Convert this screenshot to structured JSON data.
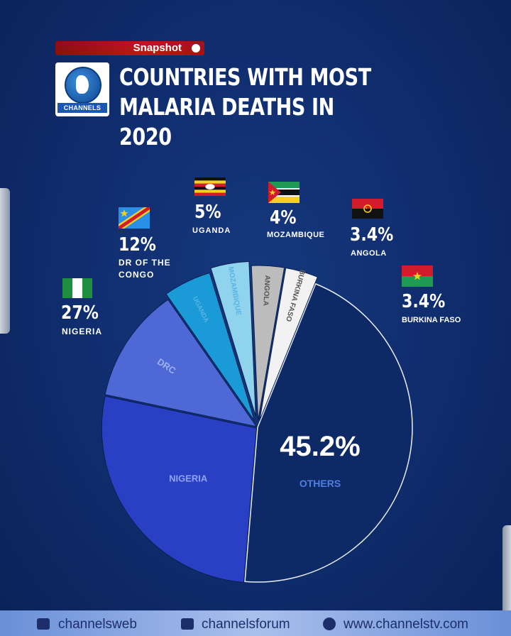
{
  "header": {
    "badge": "Snapshot",
    "brand": "CHANNELS",
    "title_line1": "COUNTRIES WITH MOST",
    "title_line2": "MALARIA DEATHS IN 2020"
  },
  "chart_data": {
    "type": "pie",
    "title": "COUNTRIES WITH MOST MALARIA DEATHS IN 2020",
    "slices": [
      {
        "label": "OTHERS",
        "slice_label": "OTHERS",
        "value": 45.2,
        "pct": "45.2%",
        "color": "#0d2a66"
      },
      {
        "label": "NIGERIA",
        "slice_label": "NIGERIA",
        "value": 27,
        "pct": "27%",
        "color": "#2a40c4"
      },
      {
        "label": "DR OF THE CONGO",
        "slice_label": "DRC",
        "value": 12,
        "pct": "12%",
        "color": "#4e68d6"
      },
      {
        "label": "UGANDA",
        "slice_label": "UGANDA",
        "value": 5,
        "pct": "5%",
        "color": "#1a9ad6"
      },
      {
        "label": "MOZAMBIQUE",
        "slice_label": "MOZAMBIQUE",
        "value": 4,
        "pct": "4%",
        "color": "#8fd3ec"
      },
      {
        "label": "ANGOLA",
        "slice_label": "ANGOLA",
        "value": 3.4,
        "pct": "3.4%",
        "color": "#bcbcbc"
      },
      {
        "label": "BURKINA FASO",
        "slice_label": "BURKINA FASO",
        "value": 3.4,
        "pct": "3.4%",
        "color": "#f2f2f2"
      }
    ]
  },
  "callouts": {
    "nigeria": {
      "pct": "27%",
      "name": "NIGERIA"
    },
    "drc": {
      "pct": "12%",
      "name_line1": "DR OF THE",
      "name_line2": "CONGO"
    },
    "uganda": {
      "pct": "5%",
      "name": "UGANDA"
    },
    "mozambique": {
      "pct": "4%",
      "name": "MOZAMBIQUE"
    },
    "angola": {
      "pct": "3.4%",
      "name": "ANGOLA"
    },
    "burkina": {
      "pct": "3.4%",
      "name": "BURKINA FASO"
    }
  },
  "footer": {
    "youtube": "channelsweb",
    "facebook": "channelsforum",
    "website": "www.channelstv.com"
  }
}
